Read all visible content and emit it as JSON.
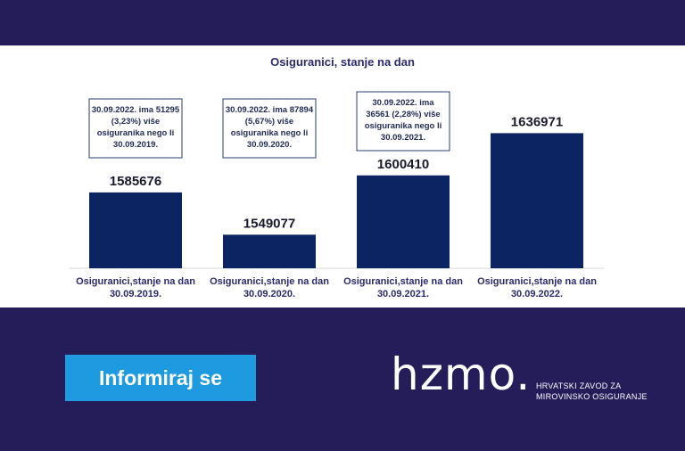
{
  "chart_data": {
    "type": "bar",
    "title": "Osiguranici, stanje na dan",
    "categories": [
      "Osiguranici,stanje na dan|30.09.2019.",
      "Osiguranici,stanje na dan|30.09.2020.",
      "Osiguranici,stanje na dan|30.09.2021.",
      "Osiguranici,stanje na dan|30.09.2022."
    ],
    "values": [
      1585676,
      1549077,
      1600410,
      1636971
    ],
    "value_labels": [
      "1585676",
      "1549077",
      "1600410",
      "1636971"
    ],
    "annotations": [
      {
        "category": 0,
        "text": "30.09.2022. ima 51295|(3,23%) više|osiguranika nego li|30.09.2019."
      },
      {
        "category": 1,
        "text": "30.09.2022. ima 87894|(5,67%) više|osiguranika nego li|30.09.2020."
      },
      {
        "category": 2,
        "text": "30.09.2022. ima|36561 (2,28%) više|osiguranika nego li|30.09.2021."
      }
    ],
    "ylim": [
      1520000,
      1645000
    ],
    "grid": false,
    "legend": "none",
    "bar_color": "#0d2462"
  },
  "cta": {
    "label": "Informiraj se"
  },
  "logo": {
    "wordmark": "hzmo.",
    "line1": "HRVATSKI ZAVOD ZA",
    "line2": "MIROVINSKO OSIGURANJE"
  },
  "colors": {
    "background": "#251c5a",
    "accent": "#1e9be0",
    "panel": "#ffffff"
  }
}
